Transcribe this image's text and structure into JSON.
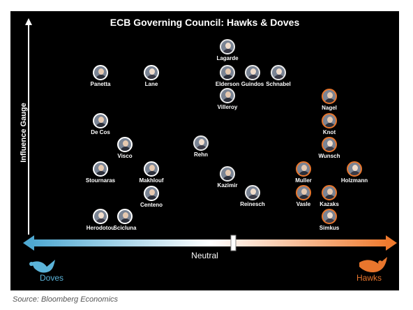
{
  "title": "ECB Governing Council: Hawks & Doves",
  "y_axis_label": "Influence Gauge",
  "scale": {
    "left_label": "Doves",
    "center_label": "Neutral",
    "right_label": "Hawks"
  },
  "colors": {
    "dove": "#5bb3d8",
    "hawk": "#e8762d",
    "background": "#000000"
  },
  "source": "Source: Bloomberg Economics",
  "members": [
    {
      "name": "Lagarde",
      "group": "neutral"
    },
    {
      "name": "Elderson",
      "group": "neutral"
    },
    {
      "name": "Guindos",
      "group": "neutral"
    },
    {
      "name": "Schnabel",
      "group": "neutral"
    },
    {
      "name": "Villeroy",
      "group": "neutral"
    },
    {
      "name": "Panetta",
      "group": "dove"
    },
    {
      "name": "Lane",
      "group": "dove"
    },
    {
      "name": "De Cos",
      "group": "dove"
    },
    {
      "name": "Visco",
      "group": "dove"
    },
    {
      "name": "Stournaras",
      "group": "dove"
    },
    {
      "name": "Makhlouf",
      "group": "dove"
    },
    {
      "name": "Centeno",
      "group": "dove"
    },
    {
      "name": "Herodotou",
      "group": "dove"
    },
    {
      "name": "Scicluna",
      "group": "dove"
    },
    {
      "name": "Rehn",
      "group": "neutral"
    },
    {
      "name": "Kazimir",
      "group": "neutral"
    },
    {
      "name": "Reinesch",
      "group": "neutral"
    },
    {
      "name": "Nagel",
      "group": "hawk"
    },
    {
      "name": "Knot",
      "group": "hawk"
    },
    {
      "name": "Wunsch",
      "group": "hawk"
    },
    {
      "name": "Muller",
      "group": "hawk"
    },
    {
      "name": "Holzmann",
      "group": "hawk"
    },
    {
      "name": "Vasle",
      "group": "hawk"
    },
    {
      "name": "Kazaks",
      "group": "hawk"
    },
    {
      "name": "Simkus",
      "group": "hawk"
    }
  ]
}
